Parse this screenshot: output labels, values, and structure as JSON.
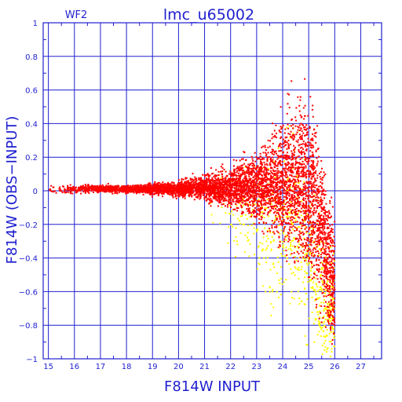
{
  "chart_data": {
    "type": "scatter",
    "title": "lmc_u65002",
    "subtitle": "WF2",
    "xlabel": "F814W  INPUT",
    "ylabel": "F814W  (OBS−INPUT)",
    "xlim": [
      14.8,
      27.8
    ],
    "ylim": [
      -1,
      1
    ],
    "x_ticks": [
      "15",
      "16",
      "17",
      "18",
      "19",
      "20",
      "21",
      "22",
      "23",
      "24",
      "25",
      "26",
      "27"
    ],
    "y_ticks": [
      "1",
      "0.8",
      "0.6",
      "0.4",
      "0.2",
      "0",
      "−0.2",
      "−0.4",
      "−0.6",
      "−0.8",
      "−1"
    ],
    "grid": true,
    "colors": {
      "axis": "#1f1fd0",
      "grid": "#1f1fd0",
      "series_main": "#ff0000",
      "series_secondary": "#ffff00"
    },
    "series": [
      {
        "color": "#ff0000",
        "x": [
          15.0,
          15.5,
          16.0,
          16.5,
          17.0,
          17.5,
          18.0,
          18.5,
          19.0,
          19.5,
          20.0,
          20.5,
          21.0,
          21.5,
          22.0,
          22.5,
          23.0,
          23.5,
          24.0,
          24.5,
          24.8,
          25.0,
          25.3,
          25.6,
          26.0
        ],
        "y": [
          0.01,
          0.01,
          0.01,
          0.01,
          0.01,
          0.01,
          0.01,
          0.01,
          0.01,
          0.01,
          0.01,
          0.02,
          0.02,
          0.02,
          0.02,
          0.03,
          0.03,
          0.04,
          0.05,
          0.06,
          0.05,
          0.0,
          -0.1,
          -0.3,
          -0.6
        ],
        "spread": [
          0.02,
          0.02,
          0.02,
          0.02,
          0.02,
          0.02,
          0.02,
          0.02,
          0.03,
          0.03,
          0.04,
          0.05,
          0.06,
          0.08,
          0.1,
          0.13,
          0.17,
          0.22,
          0.3,
          0.38,
          0.42,
          0.42,
          0.45,
          0.4,
          0.35
        ]
      },
      {
        "color": "#ffff00",
        "x": [
          21.0,
          22.0,
          23.0,
          23.5,
          24.0,
          24.5,
          25.0,
          25.5,
          26.0
        ],
        "y": [
          0.0,
          -0.1,
          -0.2,
          -0.3,
          -0.2,
          -0.2,
          -0.4,
          -0.6,
          -0.7
        ],
        "spread": [
          0.1,
          0.2,
          0.3,
          0.35,
          0.4,
          0.45,
          0.45,
          0.4,
          0.3
        ]
      }
    ]
  }
}
